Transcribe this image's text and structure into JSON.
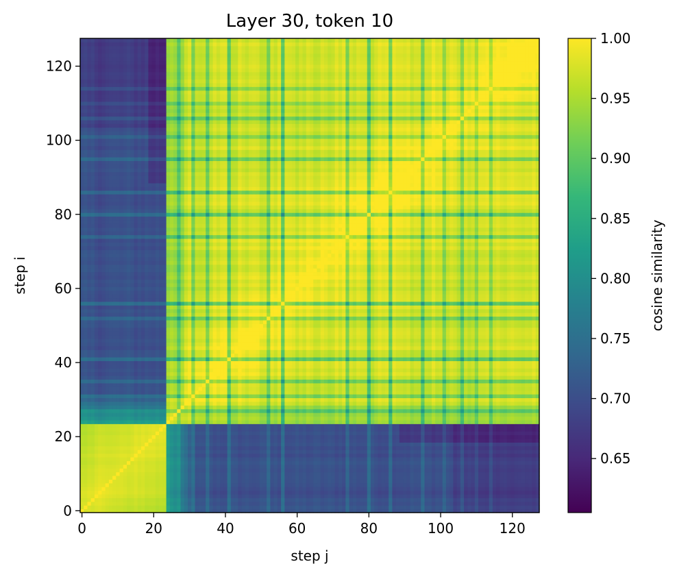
{
  "chart_data": {
    "type": "heatmap",
    "title": "Layer 30, token 10",
    "xlabel": "step j",
    "ylabel": "step i",
    "size": 128,
    "block_boundary": 24,
    "xlim": [
      0,
      127
    ],
    "ylim": [
      0,
      127
    ],
    "x_ticks": [
      0,
      20,
      40,
      60,
      80,
      100,
      120
    ],
    "y_ticks": [
      0,
      20,
      40,
      60,
      80,
      100,
      120
    ],
    "colorbar": {
      "label": "cosine similarity",
      "colormap": "viridis",
      "range": [
        0.605,
        1.0
      ],
      "ticks": [
        "0.65",
        "0.70",
        "0.75",
        "0.80",
        "0.85",
        "0.90",
        "0.95",
        "1.00"
      ],
      "colors": [
        "#440154",
        "#482878",
        "#3e4989",
        "#31688e",
        "#26828e",
        "#1f9e89",
        "#35b779",
        "#6ece58",
        "#b5de2b",
        "#fde725"
      ]
    },
    "blocks": [
      {
        "name": "steps 0-23 vs 0-23",
        "value_range": [
          0.97,
          1.0
        ]
      },
      {
        "name": "steps 0-23 vs 24-127",
        "value_range": [
          0.64,
          0.85
        ]
      },
      {
        "name": "steps 24-127 vs 24-127",
        "value_range": [
          0.82,
          1.0
        ]
      }
    ],
    "dissimilar_steps": [
      27,
      31,
      35,
      41,
      52,
      56,
      74,
      80,
      86,
      95,
      101,
      106,
      110,
      114
    ],
    "grid": false,
    "origin": "lower"
  }
}
